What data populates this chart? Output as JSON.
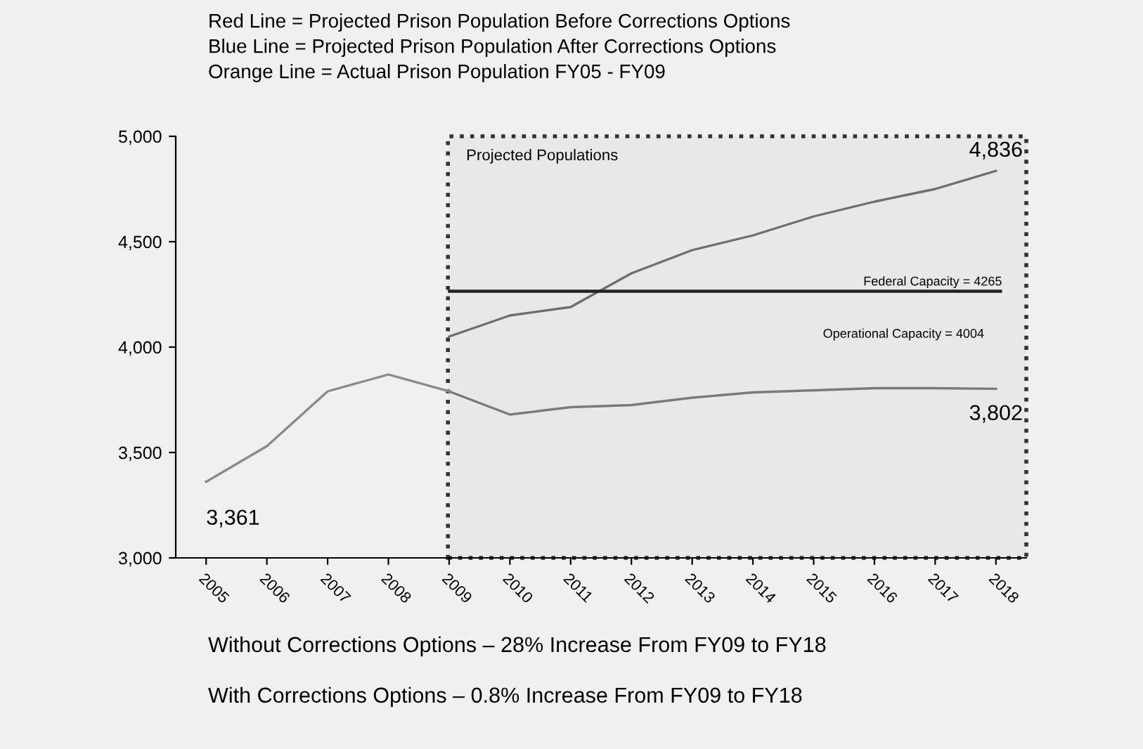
{
  "chart_data": {
    "type": "line",
    "title": "Red Line = Projected Prison Population Before Corrections Options",
    "subtitle": "Blue Line = Projected Prison Population After Corrections Options",
    "categories": [
      "2005",
      "2006",
      "2007",
      "2008",
      "2009",
      "2010",
      "2011",
      "2012",
      "2013",
      "2014",
      "2015",
      "2016",
      "2017",
      "2018"
    ],
    "series": [
      {
        "color": "#6e6e6e",
        "values": [
          null,
          null,
          null,
          null,
          4050,
          4150,
          4190,
          4350,
          4460,
          4530,
          4620,
          4690,
          4750,
          4836
        ],
        "value_labels": [
          null,
          null,
          null,
          null,
          null,
          null,
          null,
          null,
          null,
          null,
          null,
          null,
          null,
          "4,836"
        ]
      },
      {
        "color": "#7a7a7a",
        "values": [
          null,
          null,
          null,
          null,
          3790,
          3680,
          3715,
          3725,
          3760,
          3785,
          3795,
          3805,
          3805,
          3802
        ],
        "value_labels": [
          null,
          null,
          null,
          null,
          null,
          null,
          null,
          null,
          null,
          null,
          null,
          null,
          null,
          "3,802"
        ]
      },
      {
        "color": "#8a8a8a",
        "values": [
          3361,
          3530,
          3790,
          3870,
          3790,
          null,
          null,
          null,
          null,
          null,
          null,
          null,
          null,
          null
        ],
        "value_labels": [
          "3,361",
          null,
          null,
          null,
          null,
          null,
          null,
          null,
          null,
          null,
          null,
          null,
          null,
          null
        ]
      }
    ],
    "ylim": [
      3000,
      5000
    ],
    "yticks": [
      {
        "value": 3000,
        "label": "3,000"
      },
      {
        "value": 3500,
        "label": "3,500"
      },
      {
        "value": 4000,
        "label": "4,000"
      },
      {
        "value": 4500,
        "label": "4,500"
      },
      {
        "value": 5000,
        "label": "5,000"
      }
    ],
    "ref_lines": [
      {
        "axis": "y",
        "value": 4265,
        "label": "Federal Capacity = 4265",
        "color": "#222222",
        "line_style": "solid"
      }
    ],
    "bands": [
      {
        "axis": "x",
        "from": "2009",
        "to": "2018",
        "label": "Projected Populations",
        "color": "#333333"
      }
    ],
    "annotations": [
      "Orange Line = Actual Prison Population FY05 - FY09",
      "Operational Capacity = 4004",
      "Without Corrections Options – 28% Increase From FY09 to FY18",
      "With Corrections Options – 0.8% Increase From FY09 to FY18"
    ],
    "grid": false,
    "legend": false,
    "marker": "none",
    "line_style": "solid"
  }
}
